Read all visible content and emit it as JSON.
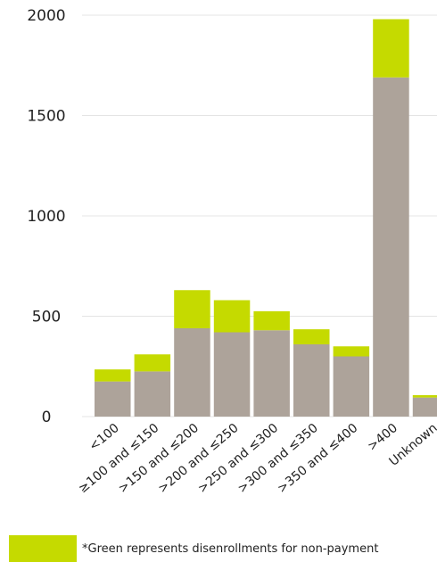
{
  "chart_data": {
    "type": "bar",
    "stacked": true,
    "categories": [
      "<100",
      "≥100 and ≤150",
      ">150 and ≤200",
      ">200 and ≤250",
      ">250 and ≤300",
      ">300 and ≤350",
      ">350 and ≤400",
      ">400",
      "Unknown"
    ],
    "series": [
      {
        "values": [
          175,
          225,
          440,
          420,
          430,
          360,
          300,
          1690,
          95
        ],
        "color": "#ada39a"
      },
      {
        "values": [
          60,
          85,
          190,
          160,
          95,
          75,
          50,
          290,
          12
        ],
        "color": "#c5da00"
      }
    ],
    "ylim": [
      0,
      2000
    ],
    "yticks": [
      0,
      500,
      1000,
      1500,
      2000
    ],
    "grid": true
  },
  "legend": {
    "swatch_color": "#c5da00",
    "text": "*Green represents disenrollments for non-payment"
  }
}
